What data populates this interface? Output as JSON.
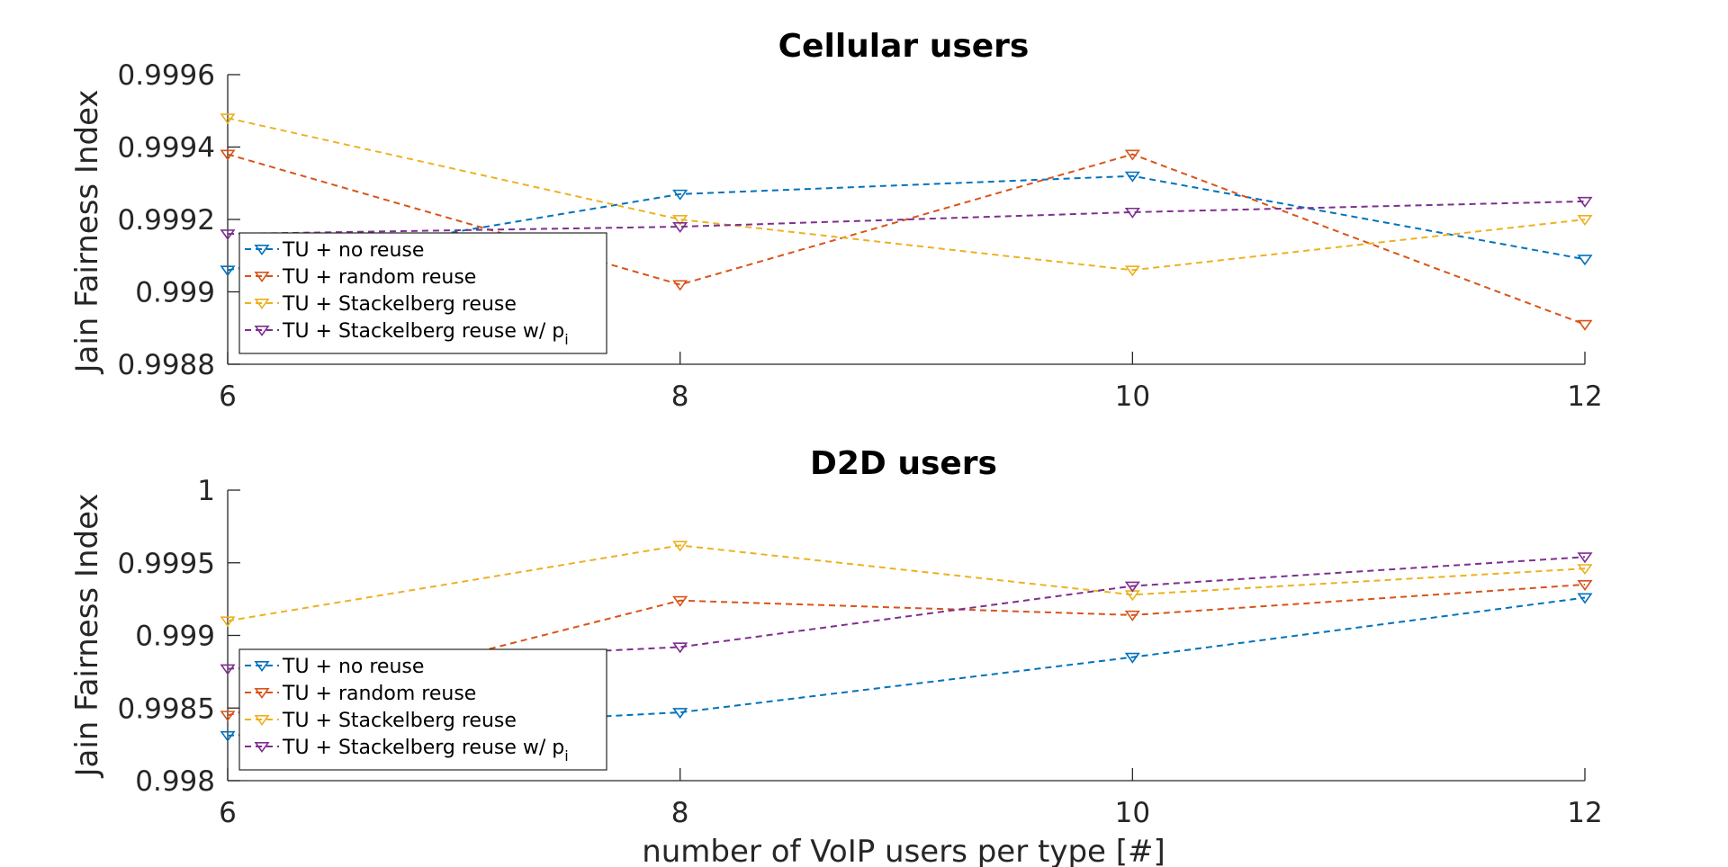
{
  "chart_data": [
    {
      "type": "line",
      "title": "Cellular users",
      "xlabel": "",
      "ylabel": "Jain Fairness Index",
      "x": [
        6,
        8,
        10,
        12
      ],
      "xlim": [
        6,
        12
      ],
      "ylim": [
        0.9988,
        0.9996
      ],
      "xticks": [
        "6",
        "8",
        "10",
        "12"
      ],
      "yticks": [
        "0.9988",
        "0.999",
        "0.9992",
        "0.9994",
        "0.9996"
      ],
      "grid": false,
      "legend_position": "bottom-left",
      "series": [
        {
          "name": "TU + no reuse",
          "color": "#0072BD",
          "values": [
            0.99906,
            0.99927,
            0.99932,
            0.99909
          ]
        },
        {
          "name": "TU + random reuse",
          "color": "#D95319",
          "values": [
            0.99938,
            0.99902,
            0.99938,
            0.99891
          ]
        },
        {
          "name": "TU + Stackelberg reuse",
          "color": "#EDB120",
          "values": [
            0.99948,
            0.9992,
            0.99906,
            0.9992
          ]
        },
        {
          "name": "TU + Stackelberg reuse w/ p",
          "name_subscript": "i",
          "color": "#7E2F8E",
          "values": [
            0.99916,
            0.99918,
            0.99922,
            0.99925
          ]
        }
      ]
    },
    {
      "type": "line",
      "title": "D2D users",
      "xlabel": "number of VoIP users per type [#]",
      "ylabel": "Jain Fairness Index",
      "x": [
        6,
        8,
        10,
        12
      ],
      "xlim": [
        6,
        12
      ],
      "ylim": [
        0.998,
        1
      ],
      "xticks": [
        "6",
        "8",
        "10",
        "12"
      ],
      "yticks": [
        "0.998",
        "0.9985",
        "0.999",
        "0.9995",
        "1"
      ],
      "grid": false,
      "legend_position": "bottom-left",
      "series": [
        {
          "name": "TU + no reuse",
          "color": "#0072BD",
          "values": [
            0.99831,
            0.99847,
            0.99885,
            0.99926
          ]
        },
        {
          "name": "TU + random reuse",
          "color": "#D95319",
          "values": [
            0.99845,
            0.99924,
            0.99914,
            0.99935
          ]
        },
        {
          "name": "TU + Stackelberg reuse",
          "color": "#EDB120",
          "values": [
            0.9991,
            0.99962,
            0.99928,
            0.99946
          ]
        },
        {
          "name": "TU + Stackelberg reuse w/ p",
          "name_subscript": "i",
          "color": "#7E2F8E",
          "values": [
            0.99877,
            0.99892,
            0.99934,
            0.99954
          ]
        }
      ]
    }
  ]
}
